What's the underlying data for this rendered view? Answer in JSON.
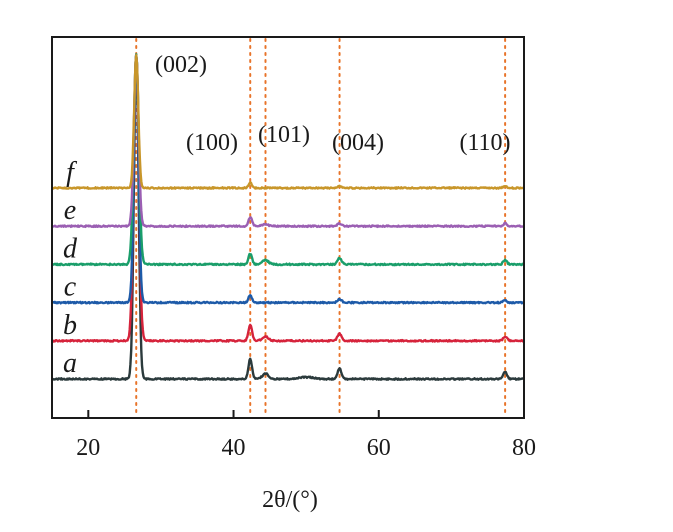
{
  "chart_data": {
    "type": "line",
    "title": "",
    "xlabel": "2θ/(°)",
    "ylabel": "",
    "xlim": [
      15,
      80
    ],
    "xticks": [
      "20",
      "40",
      "60",
      "80"
    ],
    "xtick_values": [
      20,
      40,
      60,
      80
    ],
    "y_ticks_shown": false,
    "grid": false,
    "peak_markers": [
      {
        "label": "(002)",
        "x": 26.6
      },
      {
        "label": "(100)",
        "x": 42.3
      },
      {
        "label": "(101)",
        "x": 44.4
      },
      {
        "label": "(004)",
        "x": 54.6
      },
      {
        "label": "(110)",
        "x": 77.4
      }
    ],
    "series": [
      {
        "name": "a",
        "color": "#2b3a3c",
        "offset": 0,
        "peaks": [
          {
            "x": 26.6,
            "h": 1.0,
            "w": 0.45
          },
          {
            "x": 42.3,
            "h": 0.55,
            "w": 0.35
          },
          {
            "x": 44.4,
            "h": 0.15,
            "w": 0.6
          },
          {
            "x": 54.6,
            "h": 0.28,
            "w": 0.4
          },
          {
            "x": 50.0,
            "h": 0.05,
            "w": 1.5
          },
          {
            "x": 77.4,
            "h": 0.2,
            "w": 0.35
          }
        ]
      },
      {
        "name": "b",
        "color": "#d6233b",
        "offset": 1,
        "peaks": [
          {
            "x": 26.6,
            "h": 1.0,
            "w": 0.5
          },
          {
            "x": 42.3,
            "h": 0.45,
            "w": 0.35
          },
          {
            "x": 44.4,
            "h": 0.12,
            "w": 0.6
          },
          {
            "x": 54.6,
            "h": 0.2,
            "w": 0.4
          },
          {
            "x": 77.4,
            "h": 0.12,
            "w": 0.35
          }
        ]
      },
      {
        "name": "c",
        "color": "#1d5aa8",
        "offset": 2,
        "peaks": [
          {
            "x": 26.6,
            "h": 1.0,
            "w": 0.45
          },
          {
            "x": 42.3,
            "h": 0.2,
            "w": 0.35
          },
          {
            "x": 54.6,
            "h": 0.1,
            "w": 0.4
          },
          {
            "x": 77.4,
            "h": 0.06,
            "w": 0.35
          }
        ]
      },
      {
        "name": "d",
        "color": "#1a9e6a",
        "offset": 3,
        "peaks": [
          {
            "x": 26.6,
            "h": 1.0,
            "w": 0.5
          },
          {
            "x": 42.3,
            "h": 0.3,
            "w": 0.35
          },
          {
            "x": 44.4,
            "h": 0.12,
            "w": 0.6
          },
          {
            "x": 54.6,
            "h": 0.18,
            "w": 0.4
          },
          {
            "x": 77.4,
            "h": 0.12,
            "w": 0.35
          }
        ]
      },
      {
        "name": "e",
        "color": "#9b5fb3",
        "offset": 4,
        "peaks": [
          {
            "x": 26.6,
            "h": 1.0,
            "w": 0.45
          },
          {
            "x": 42.3,
            "h": 0.25,
            "w": 0.35
          },
          {
            "x": 44.4,
            "h": 0.05,
            "w": 0.6
          },
          {
            "x": 54.6,
            "h": 0.08,
            "w": 0.4
          },
          {
            "x": 77.4,
            "h": 0.08,
            "w": 0.35
          }
        ]
      },
      {
        "name": "f",
        "color": "#c8962a",
        "offset": 5,
        "peaks": [
          {
            "x": 26.6,
            "h": 1.0,
            "w": 0.4
          },
          {
            "x": 42.3,
            "h": 0.15,
            "w": 0.3
          },
          {
            "x": 54.6,
            "h": 0.05,
            "w": 0.4
          },
          {
            "x": 77.4,
            "h": 0.06,
            "w": 0.35
          }
        ]
      }
    ]
  },
  "colors": {
    "axis": "#1a1a1a",
    "marker_line": "#e8742a"
  }
}
